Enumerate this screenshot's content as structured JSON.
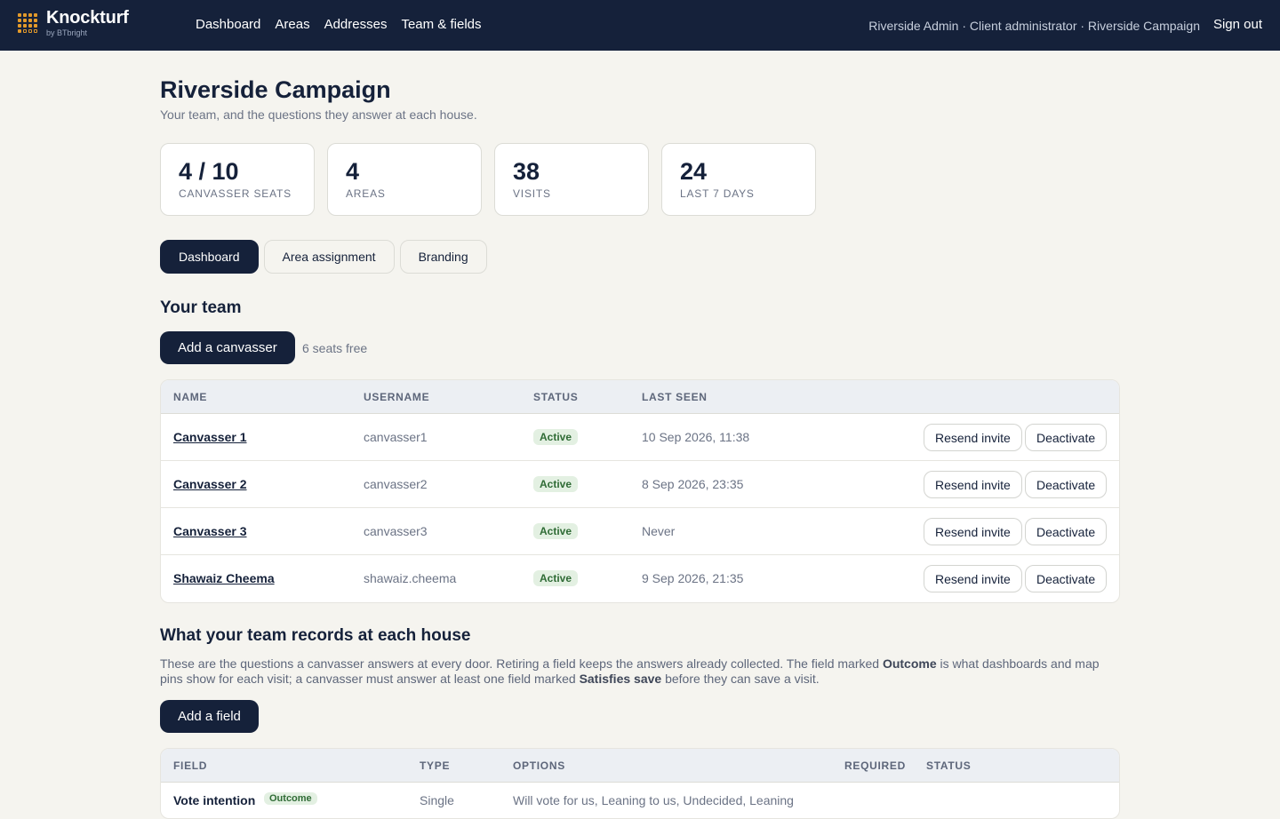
{
  "brand": {
    "name": "Knockturf",
    "sub": "by BTbright"
  },
  "nav": {
    "items": [
      "Dashboard",
      "Areas",
      "Addresses",
      "Team & fields"
    ]
  },
  "user": {
    "context": "Riverside Admin · Client administrator · Riverside Campaign",
    "signout": "Sign out"
  },
  "page": {
    "title": "Riverside Campaign",
    "subtitle": "Your team, and the questions they answer at each house."
  },
  "stats": [
    {
      "value": "4 / 10",
      "label": "CANVASSER SEATS"
    },
    {
      "value": "4",
      "label": "AREAS"
    },
    {
      "value": "38",
      "label": "VISITS"
    },
    {
      "value": "24",
      "label": "LAST 7 DAYS"
    }
  ],
  "tabs": [
    "Dashboard",
    "Area assignment",
    "Branding"
  ],
  "team": {
    "heading": "Your team",
    "add_button": "Add a canvasser",
    "seats_free": "6 seats free",
    "columns": [
      "NAME",
      "USERNAME",
      "STATUS",
      "LAST SEEN"
    ],
    "rows": [
      {
        "name": "Canvasser 1",
        "username": "canvasser1",
        "status": "Active",
        "last_seen": "10 Sep 2026, 11:38"
      },
      {
        "name": "Canvasser 2",
        "username": "canvasser2",
        "status": "Active",
        "last_seen": "8 Sep 2026, 23:35"
      },
      {
        "name": "Canvasser 3",
        "username": "canvasser3",
        "status": "Active",
        "last_seen": "Never"
      },
      {
        "name": "Shawaiz Cheema",
        "username": "shawaiz.cheema",
        "status": "Active",
        "last_seen": "9 Sep 2026, 21:35"
      }
    ],
    "resend_label": "Resend invite",
    "deactivate_label": "Deactivate"
  },
  "fields": {
    "heading": "What your team records at each house",
    "para_1": "These are the questions a canvasser answers at every door. Retiring a field keeps the answers already collected. The field marked ",
    "para_bold_1": "Outcome",
    "para_2": " is what dashboards and map pins show for each visit; a canvasser must answer at least one field marked ",
    "para_bold_2": "Satisfies save",
    "para_3": " before they can save a visit.",
    "add_button": "Add a field",
    "columns": [
      "FIELD",
      "TYPE",
      "OPTIONS",
      "REQUIRED",
      "STATUS"
    ],
    "rows": [
      {
        "field": "Vote intention",
        "tag": "Outcome",
        "type": "Single",
        "options": "Will vote for us, Leaning to us, Undecided, Leaning"
      }
    ]
  }
}
